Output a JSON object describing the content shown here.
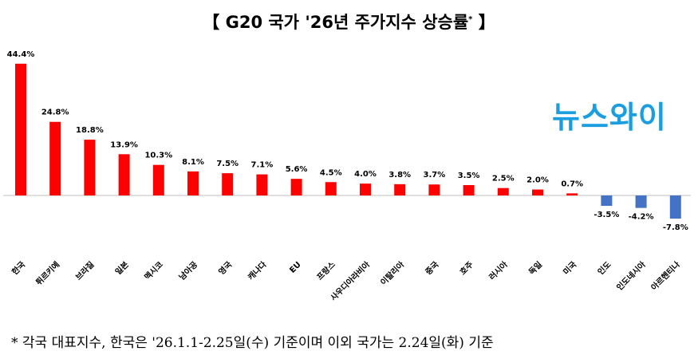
{
  "chart_data": {
    "type": "bar",
    "title": "【 G20 국가 '26년 주가지수 상승률",
    "title_mark": "*",
    "title_close": "】",
    "xlabel": "",
    "ylabel": "",
    "ylim": [
      -10,
      48
    ],
    "grid": false,
    "categories": [
      "한국",
      "튀르키예",
      "브라질",
      "일본",
      "멕시코",
      "남아공",
      "영국",
      "캐나다",
      "EU",
      "프랑스",
      "사우디아라비아",
      "이탈리아",
      "중국",
      "호주",
      "러시아",
      "독일",
      "미국",
      "인도",
      "인도네시아",
      "아르헨티나"
    ],
    "values": [
      44.4,
      24.8,
      18.8,
      13.9,
      10.3,
      8.1,
      7.5,
      7.1,
      5.6,
      4.5,
      4.0,
      3.8,
      3.7,
      3.5,
      2.5,
      2.0,
      0.7,
      -3.5,
      -4.2,
      -7.8
    ],
    "unit": "%",
    "colors": {
      "positive": "#ff0000",
      "negative": "#4472c4"
    }
  },
  "logo": "뉴스와이",
  "footnote": "* 각국 대표지수, 한국은 '26.1.1-2.25일(수) 기준이며 이외 국가는 2.24일(화) 기준"
}
